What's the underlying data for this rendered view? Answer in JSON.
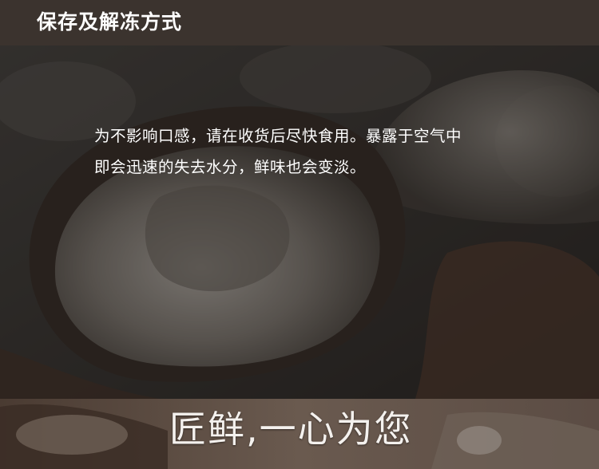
{
  "header": {
    "title": "保存及解冻方式"
  },
  "content": {
    "line1": "为不影响口感，请在收货后尽快食用。暴露于空气中",
    "line2": "即会迅速的失去水分，鲜味也会变淡。"
  },
  "footer": {
    "slogan": "匠鲜,一心为您"
  },
  "colors": {
    "header_bg": "#3b332e",
    "text": "#ffffff"
  }
}
